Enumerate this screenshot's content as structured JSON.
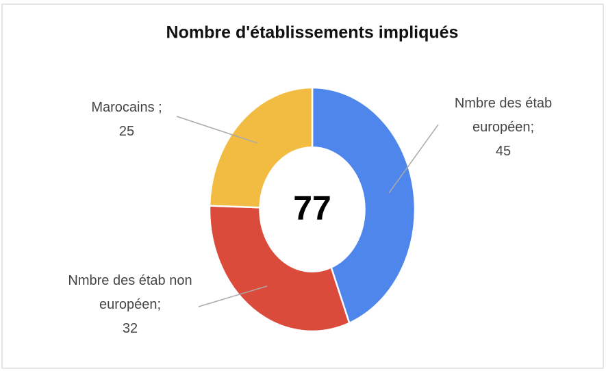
{
  "chart_data": {
    "type": "donut",
    "title": "Nombre d'établissements impliqués",
    "categories": [
      "Nmbre des étab européen;",
      "Nmbre des étab non européen;",
      "Marocains ;"
    ],
    "values": [
      45,
      32,
      25
    ],
    "colors": [
      "#4f86ec",
      "#db4b3b",
      "#f2bc42"
    ],
    "center_label": 77
  }
}
